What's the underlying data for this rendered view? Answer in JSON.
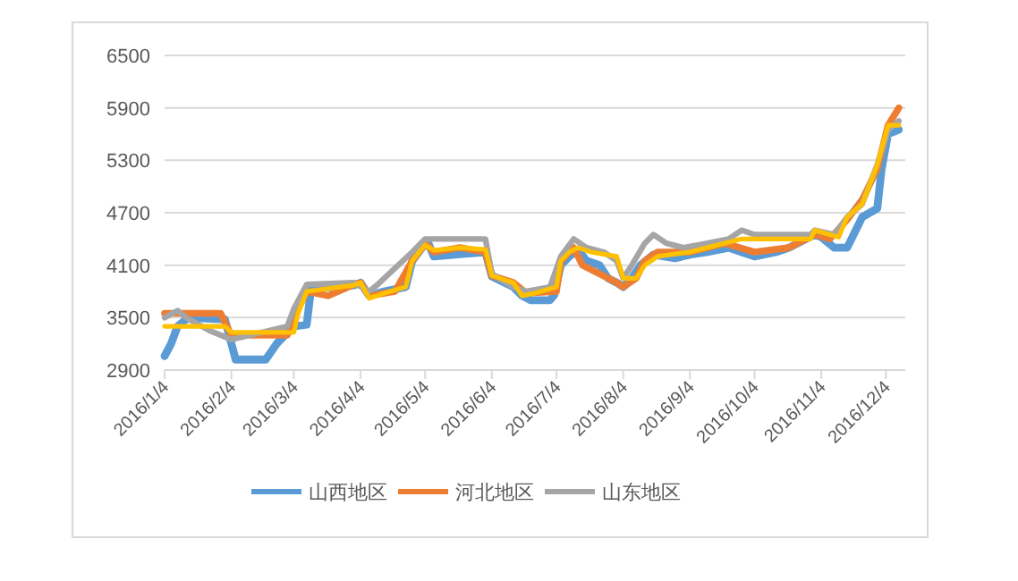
{
  "chart_data": {
    "type": "line",
    "xlim": [
      "2016-01-04",
      "2016-12-13"
    ],
    "ylim": [
      2900,
      6500
    ],
    "yticks": [
      2900,
      3500,
      4100,
      4700,
      5300,
      5900,
      6500
    ],
    "xticks": [
      {
        "value": "2016-01-04",
        "label": "2016/1/4"
      },
      {
        "value": "2016-02-04",
        "label": "2016/2/4"
      },
      {
        "value": "2016-03-04",
        "label": "2016/3/4"
      },
      {
        "value": "2016-04-04",
        "label": "2016/4/4"
      },
      {
        "value": "2016-05-04",
        "label": "2016/5/4"
      },
      {
        "value": "2016-06-04",
        "label": "2016/6/4"
      },
      {
        "value": "2016-07-04",
        "label": "2016/7/4"
      },
      {
        "value": "2016-08-04",
        "label": "2016/8/4"
      },
      {
        "value": "2016-09-04",
        "label": "2016/9/4"
      },
      {
        "value": "2016-10-04",
        "label": "2016/10/4"
      },
      {
        "value": "2016-11-04",
        "label": "2016/11/4"
      },
      {
        "value": "2016-12-04",
        "label": "2016/12/4"
      }
    ],
    "grid": "y",
    "legend": "bottom",
    "line_style": "solid",
    "marker": "none",
    "series": [
      {
        "name": "山西地区",
        "color": "#5b9bd5",
        "x": [
          "2016-01-04",
          "2016-01-07",
          "2016-01-10",
          "2016-01-15",
          "2016-02-01",
          "2016-02-06",
          "2016-02-20",
          "2016-02-25",
          "2016-03-04",
          "2016-03-10",
          "2016-03-12",
          "2016-04-01",
          "2016-04-04",
          "2016-04-08",
          "2016-04-15",
          "2016-04-25",
          "2016-04-28",
          "2016-05-05",
          "2016-05-08",
          "2016-06-01",
          "2016-06-04",
          "2016-06-14",
          "2016-06-18",
          "2016-06-22",
          "2016-07-01",
          "2016-07-03",
          "2016-07-06",
          "2016-07-10",
          "2016-07-14",
          "2016-07-18",
          "2016-07-24",
          "2016-07-28",
          "2016-08-01",
          "2016-08-04",
          "2016-08-08",
          "2016-08-12",
          "2016-08-18",
          "2016-08-28",
          "2016-09-04",
          "2016-09-12",
          "2016-09-22",
          "2016-09-28",
          "2016-10-04",
          "2016-10-14",
          "2016-10-20",
          "2016-11-01",
          "2016-11-04",
          "2016-11-10",
          "2016-11-16",
          "2016-11-23",
          "2016-11-30",
          "2016-12-02",
          "2016-12-05",
          "2016-12-10"
        ],
        "values": [
          3060,
          3200,
          3400,
          3500,
          3480,
          3020,
          3020,
          3200,
          3400,
          3420,
          3830,
          3870,
          3900,
          3750,
          3800,
          3850,
          4150,
          4380,
          4200,
          4250,
          3970,
          3850,
          3750,
          3700,
          3700,
          3760,
          4100,
          4200,
          4280,
          4150,
          4100,
          3950,
          3900,
          3850,
          3950,
          4100,
          4220,
          4180,
          4220,
          4250,
          4300,
          4250,
          4200,
          4250,
          4300,
          4450,
          4420,
          4300,
          4300,
          4650,
          4750,
          5200,
          5600,
          5650
        ]
      },
      {
        "name": "河北地区",
        "color": "#ed7d31",
        "x": [
          "2016-01-04",
          "2016-01-30",
          "2016-02-04",
          "2016-03-01",
          "2016-03-04",
          "2016-03-10",
          "2016-03-20",
          "2016-04-01",
          "2016-04-04",
          "2016-04-08",
          "2016-04-20",
          "2016-04-28",
          "2016-05-04",
          "2016-05-08",
          "2016-05-20",
          "2016-06-01",
          "2016-06-04",
          "2016-06-14",
          "2016-06-20",
          "2016-07-04",
          "2016-07-06",
          "2016-07-12",
          "2016-07-16",
          "2016-07-24",
          "2016-08-01",
          "2016-08-04",
          "2016-08-10",
          "2016-08-14",
          "2016-08-20",
          "2016-09-04",
          "2016-09-12",
          "2016-09-20",
          "2016-10-04",
          "2016-10-20",
          "2016-11-01",
          "2016-11-08",
          "2016-11-16",
          "2016-11-23",
          "2016-11-30",
          "2016-12-05",
          "2016-12-10"
        ],
        "values": [
          3550,
          3550,
          3300,
          3300,
          3500,
          3800,
          3750,
          3880,
          3900,
          3750,
          3800,
          4150,
          4350,
          4250,
          4300,
          4250,
          3980,
          3900,
          3780,
          3800,
          4150,
          4300,
          4100,
          4000,
          3900,
          3850,
          3950,
          4150,
          4250,
          4250,
          4300,
          4350,
          4250,
          4300,
          4450,
          4400,
          4620,
          4850,
          5200,
          5700,
          5900
        ]
      },
      {
        "name": "山东地区",
        "color": "#a5a5a5",
        "x": [
          "2016-01-04",
          "2016-01-10",
          "2016-01-14",
          "2016-01-25",
          "2016-02-04",
          "2016-03-01",
          "2016-03-04",
          "2016-03-10",
          "2016-04-01",
          "2016-04-08",
          "2016-04-12",
          "2016-04-28",
          "2016-05-04",
          "2016-06-01",
          "2016-06-04",
          "2016-06-14",
          "2016-06-20",
          "2016-07-01",
          "2016-07-06",
          "2016-07-12",
          "2016-07-18",
          "2016-07-26",
          "2016-08-01",
          "2016-08-04",
          "2016-08-08",
          "2016-08-14",
          "2016-08-18",
          "2016-08-24",
          "2016-09-01",
          "2016-09-12",
          "2016-09-22",
          "2016-09-28",
          "2016-10-04",
          "2016-10-30",
          "2016-11-01",
          "2016-11-10",
          "2016-11-16",
          "2016-11-23",
          "2016-11-30",
          "2016-12-05",
          "2016-12-10"
        ],
        "values": [
          3500,
          3580,
          3500,
          3350,
          3250,
          3400,
          3600,
          3880,
          3900,
          3800,
          3880,
          4250,
          4400,
          4400,
          4000,
          3850,
          3800,
          3850,
          4200,
          4400,
          4300,
          4250,
          4150,
          3950,
          4100,
          4350,
          4450,
          4350,
          4300,
          4350,
          4400,
          4500,
          4450,
          4450,
          4500,
          4450,
          4650,
          4800,
          5250,
          5650,
          5750
        ]
      },
      {
        "color": "#ffc000",
        "x": [
          "2016-01-04",
          "2016-02-01",
          "2016-02-04",
          "2016-03-04",
          "2016-03-06",
          "2016-03-10",
          "2016-04-01",
          "2016-04-04",
          "2016-04-08",
          "2016-04-15",
          "2016-04-25",
          "2016-04-28",
          "2016-05-04",
          "2016-05-08",
          "2016-05-20",
          "2016-06-01",
          "2016-06-04",
          "2016-06-14",
          "2016-06-18",
          "2016-06-24",
          "2016-07-04",
          "2016-07-06",
          "2016-07-10",
          "2016-07-14",
          "2016-07-20",
          "2016-08-01",
          "2016-08-04",
          "2016-08-10",
          "2016-08-14",
          "2016-08-20",
          "2016-09-04",
          "2016-09-12",
          "2016-09-20",
          "2016-09-28",
          "2016-10-04",
          "2016-10-30",
          "2016-11-01",
          "2016-11-08",
          "2016-11-12",
          "2016-11-16",
          "2016-11-23",
          "2016-11-30",
          "2016-12-05",
          "2016-12-10"
        ],
        "values": [
          3400,
          3400,
          3330,
          3330,
          3550,
          3800,
          3870,
          3900,
          3720,
          3780,
          3850,
          4150,
          4330,
          4270,
          4300,
          4280,
          3980,
          3900,
          3750,
          3780,
          3850,
          4150,
          4250,
          4300,
          4250,
          4200,
          3950,
          3950,
          4100,
          4200,
          4250,
          4300,
          4350,
          4400,
          4400,
          4400,
          4500,
          4450,
          4420,
          4650,
          4800,
          5250,
          5700,
          5700
        ]
      }
    ]
  }
}
